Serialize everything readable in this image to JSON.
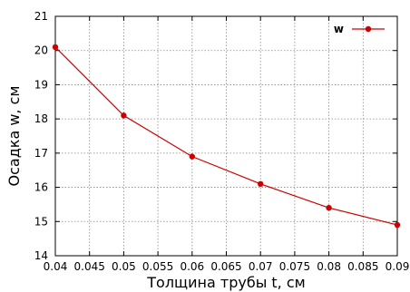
{
  "chart_data": {
    "type": "line",
    "xlabel": "Толщина трубы t, см",
    "ylabel": "Осадка w, см",
    "xlim": [
      0.04,
      0.09
    ],
    "ylim": [
      14,
      21
    ],
    "grid": true,
    "legend_position": "top-right",
    "x_ticks": [
      "0.04",
      "0.045",
      "0.05",
      "0.055",
      "0.06",
      "0.065",
      "0.07",
      "0.075",
      "0.08",
      "0.085",
      "0.09"
    ],
    "y_ticks": [
      "14",
      "15",
      "16",
      "17",
      "18",
      "19",
      "20",
      "21"
    ],
    "series": [
      {
        "name": "w",
        "color": "#cc0000",
        "x": [
          0.04,
          0.05,
          0.06,
          0.07,
          0.08,
          0.09
        ],
        "y": [
          20.1,
          18.1,
          16.9,
          16.1,
          15.4,
          14.9
        ]
      }
    ]
  }
}
